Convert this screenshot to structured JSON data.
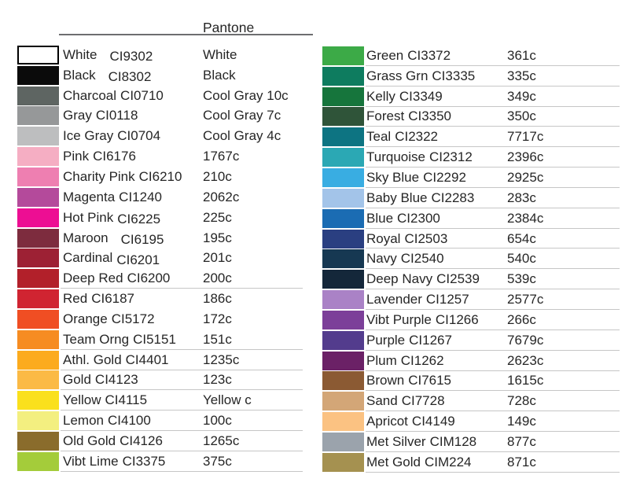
{
  "header": {
    "title": "Pantone"
  },
  "colors": {
    "text": "#262626",
    "rule": "#6d6e70",
    "line": "#c6c6c6",
    "background": "#ffffff"
  },
  "left_column": {
    "rows": [
      {
        "name": "White",
        "code": "CI9302",
        "pantone": "White",
        "color": "#ffffff",
        "border": "#000000",
        "underline": false,
        "wide_gap": true,
        "code_shift": true
      },
      {
        "name": "Black",
        "code": "CI8302",
        "pantone": "Black",
        "color": "#0b0b0b",
        "underline": false,
        "wide_gap": true,
        "code_shift": true
      },
      {
        "name": "Charcoal",
        "code": "CI0710",
        "pantone": "Cool Gray 10c",
        "color": "#5e6562",
        "underline": false
      },
      {
        "name": "Gray",
        "code": "CI0118",
        "pantone": "Cool Gray 7c",
        "color": "#969899",
        "underline": false
      },
      {
        "name": "Ice Gray",
        "code": "CI0704",
        "pantone": "Cool Gray 4c",
        "color": "#bdbebf",
        "underline": false
      },
      {
        "name": "Pink",
        "code": "CI6176",
        "pantone": "1767c",
        "color": "#f5aec3",
        "underline": false
      },
      {
        "name": "Charity Pink",
        "code": "CI6210",
        "pantone": "210c",
        "color": "#ee7fb1",
        "underline": false
      },
      {
        "name": "Magenta",
        "code": "CI1240",
        "pantone": "2062c",
        "color": "#b44a9b",
        "underline": false
      },
      {
        "name": "Hot Pink",
        "code": "CI6225",
        "pantone": "225c",
        "color": "#ed0e93",
        "underline": false,
        "code_shift": true
      },
      {
        "name": "Maroon",
        "code": "CI6195",
        "pantone": "195c",
        "color": "#7d2c3e",
        "underline": false,
        "wide_gap": true,
        "code_shift": true
      },
      {
        "name": "Cardinal",
        "code": "CI6201",
        "pantone": "201c",
        "color": "#9d2134",
        "underline": false,
        "code_shift": true
      },
      {
        "name": "Deep Red",
        "code": "CI6200",
        "pantone": "200c",
        "color": "#b2202a",
        "underline": true
      },
      {
        "name": "Red",
        "code": "CI6187",
        "pantone": "186c",
        "color": "#d02431",
        "underline": false
      },
      {
        "name": "Orange",
        "code": "CI5172",
        "pantone": "172c",
        "color": "#f04e23",
        "underline": false
      },
      {
        "name": "Team Orng",
        "code": "CI5151",
        "pantone": "151c",
        "color": "#f68c22",
        "underline": true
      },
      {
        "name": "Athl. Gold",
        "code": "CI4401",
        "pantone": "1235c",
        "color": "#fcab1e",
        "underline": true
      },
      {
        "name": "Gold",
        "code": "CI4123",
        "pantone": "123c",
        "color": "#fbba45",
        "underline": true
      },
      {
        "name": "Yellow",
        "code": "CI4115",
        "pantone": "Yellow c",
        "color": "#fae01d",
        "underline": true
      },
      {
        "name": "Lemon",
        "code": "CI4100",
        "pantone": "100c",
        "color": "#f3ef80",
        "underline": true
      },
      {
        "name": "Old Gold",
        "code": "CI4126",
        "pantone": "1265c",
        "color": "#8a6c2c",
        "underline": true
      },
      {
        "name": "Vibt Lime",
        "code": "CI3375",
        "pantone": "375c",
        "color": "#a4cc3a",
        "underline": true
      }
    ]
  },
  "right_column": {
    "rows": [
      {
        "name": "Green",
        "code": "CI3372",
        "pantone": "361c",
        "color": "#3caa47",
        "underline": true
      },
      {
        "name": "Grass Grn",
        "code": "CI3335",
        "pantone": "335c",
        "color": "#0e7c5f",
        "underline": true
      },
      {
        "name": "Kelly",
        "code": "CI3349",
        "pantone": "349c",
        "color": "#16753c",
        "underline": true
      },
      {
        "name": "Forest",
        "code": "CI3350",
        "pantone": "350c",
        "color": "#2f5439",
        "underline": true
      },
      {
        "name": "Teal",
        "code": "CI2322",
        "pantone": "7717c",
        "color": "#0d7482",
        "underline": true
      },
      {
        "name": "Turquoise",
        "code": "CI2312",
        "pantone": "2396c",
        "color": "#2ba8b4",
        "underline": true
      },
      {
        "name": "Sky Blue",
        "code": "CI2292",
        "pantone": "2925c",
        "color": "#39ade2",
        "underline": true
      },
      {
        "name": "Baby Blue",
        "code": "CI2283",
        "pantone": "283c",
        "color": "#a3c4e9",
        "underline": true
      },
      {
        "name": "Blue",
        "code": "CI2300",
        "pantone": "2384c",
        "color": "#1b6cb3",
        "underline": true
      },
      {
        "name": "Royal",
        "code": "CI2503",
        "pantone": "654c",
        "color": "#2a3f81",
        "underline": true
      },
      {
        "name": "Navy",
        "code": "CI2540",
        "pantone": "540c",
        "color": "#163852",
        "underline": true
      },
      {
        "name": "Deep Navy",
        "code": "CI2539",
        "pantone": "539c",
        "color": "#14273a",
        "underline": true
      },
      {
        "name": "Lavender",
        "code": "CI1257",
        "pantone": "2577c",
        "color": "#aa82c6",
        "underline": true
      },
      {
        "name": "Vibt Purple",
        "code": "CI1266",
        "pantone": "266c",
        "color": "#7c3f99",
        "underline": true
      },
      {
        "name": "Purple",
        "code": "CI1267",
        "pantone": "7679c",
        "color": "#533c8d",
        "underline": true
      },
      {
        "name": "Plum",
        "code": "CI1262",
        "pantone": "2623c",
        "color": "#6b2166",
        "underline": true
      },
      {
        "name": "Brown",
        "code": "CI7615",
        "pantone": "1615c",
        "color": "#8b5a33",
        "underline": true
      },
      {
        "name": "Sand",
        "code": "CI7728",
        "pantone": "728c",
        "color": "#d3a677",
        "underline": true
      },
      {
        "name": "Apricot",
        "code": "CI4149",
        "pantone": "149c",
        "color": "#fbc282",
        "underline": true
      },
      {
        "name": "Met Silver",
        "code": "CIM128",
        "pantone": "877c",
        "color": "#9ba3ac",
        "underline": true
      },
      {
        "name": "Met Gold",
        "code": "CIM224",
        "pantone": "871c",
        "color": "#a59150",
        "underline": true
      }
    ]
  }
}
